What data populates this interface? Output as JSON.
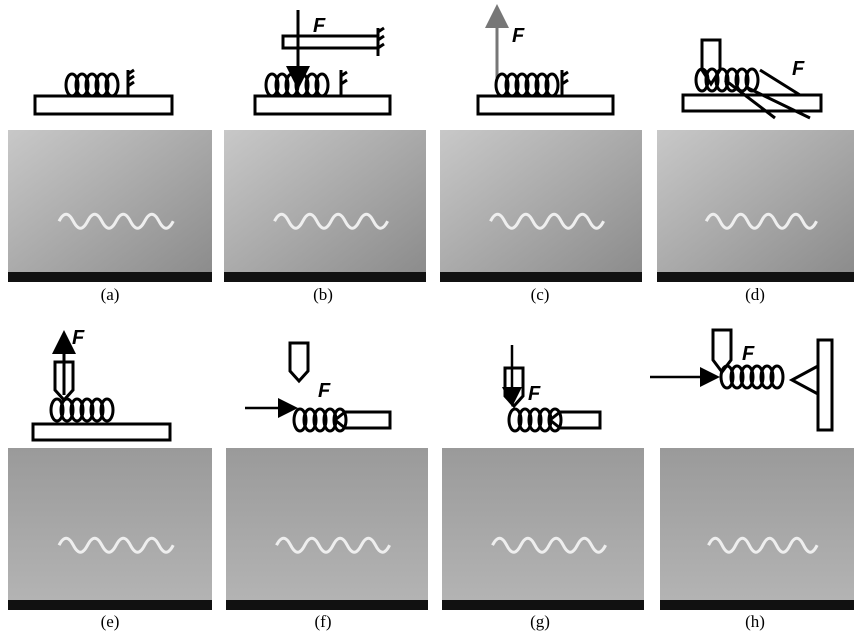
{
  "panels": [
    {
      "label": "(a)"
    },
    {
      "label": "(b)",
      "force": "F"
    },
    {
      "label": "(c)",
      "force": "F"
    },
    {
      "label": "(d)",
      "force": "F"
    },
    {
      "label": "(e)",
      "force": "F"
    },
    {
      "label": "(f)",
      "force": "F"
    },
    {
      "label": "(g)",
      "force": "F"
    },
    {
      "label": "(h)",
      "force": "F"
    }
  ]
}
